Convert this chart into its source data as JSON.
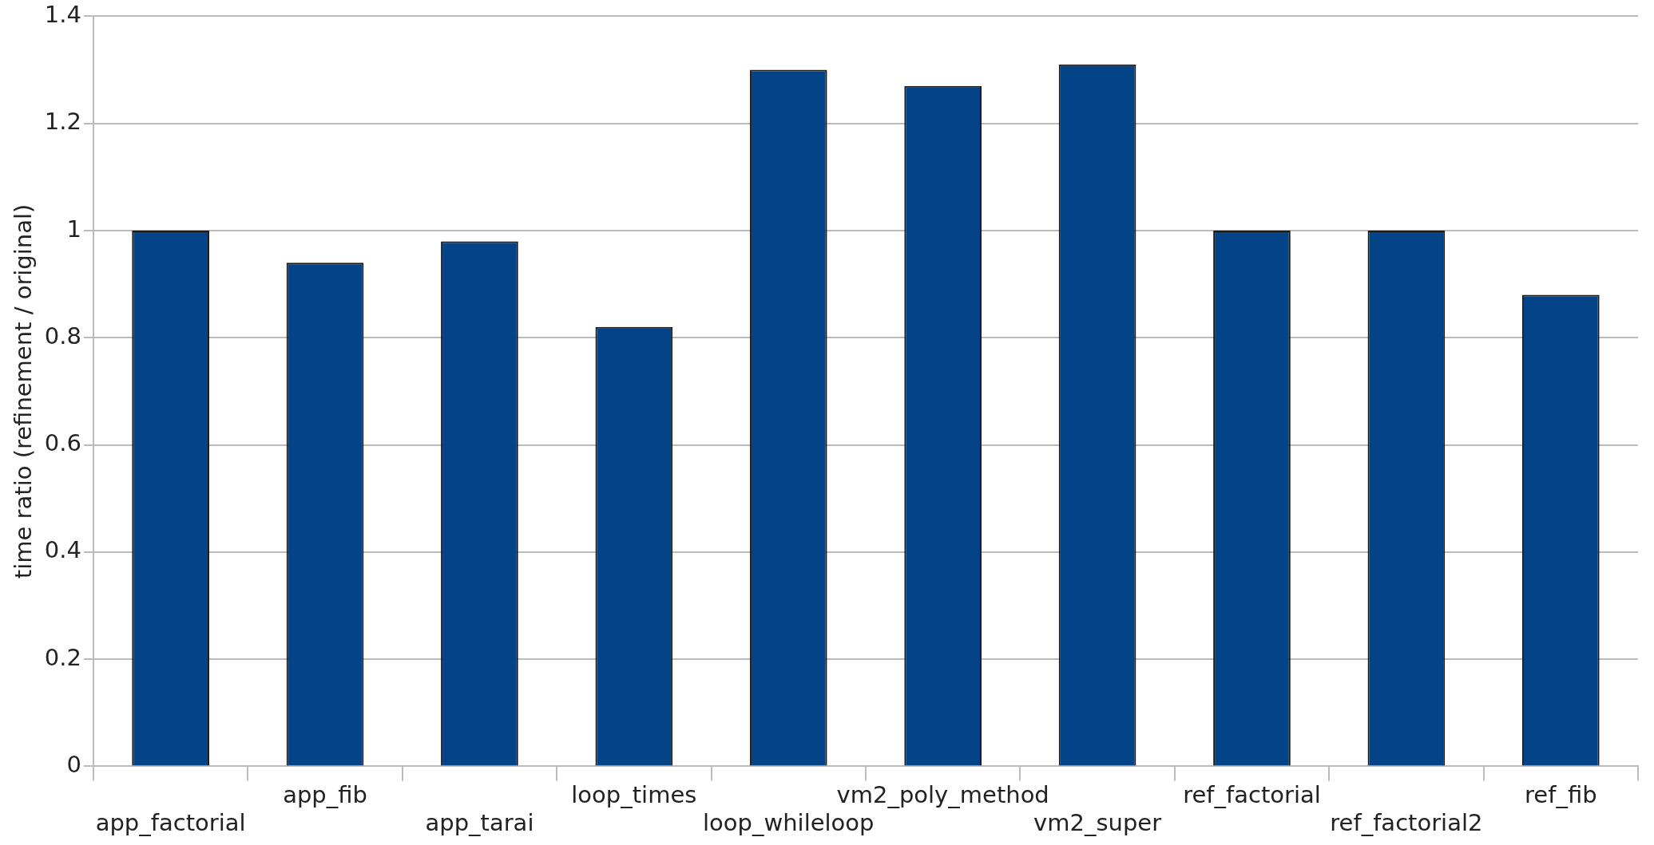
{
  "chart_data": {
    "type": "bar",
    "ylabel": "time ratio (refinement / original)",
    "categories": [
      "app_factorial",
      "app_fib",
      "app_tarai",
      "loop_times",
      "loop_whileloop",
      "vm2_poly_method",
      "vm2_super",
      "ref_factorial",
      "ref_factorial2",
      "ref_fib"
    ],
    "values": [
      1.0,
      0.94,
      0.98,
      0.82,
      1.3,
      1.27,
      1.31,
      1.0,
      1.0,
      0.88
    ],
    "color": "#034488",
    "ylim": [
      0,
      1.4
    ],
    "yticks": [
      0,
      0.2,
      0.4,
      0.6,
      0.8,
      1,
      1.2,
      1.4
    ],
    "grid": "y",
    "legend": false
  }
}
